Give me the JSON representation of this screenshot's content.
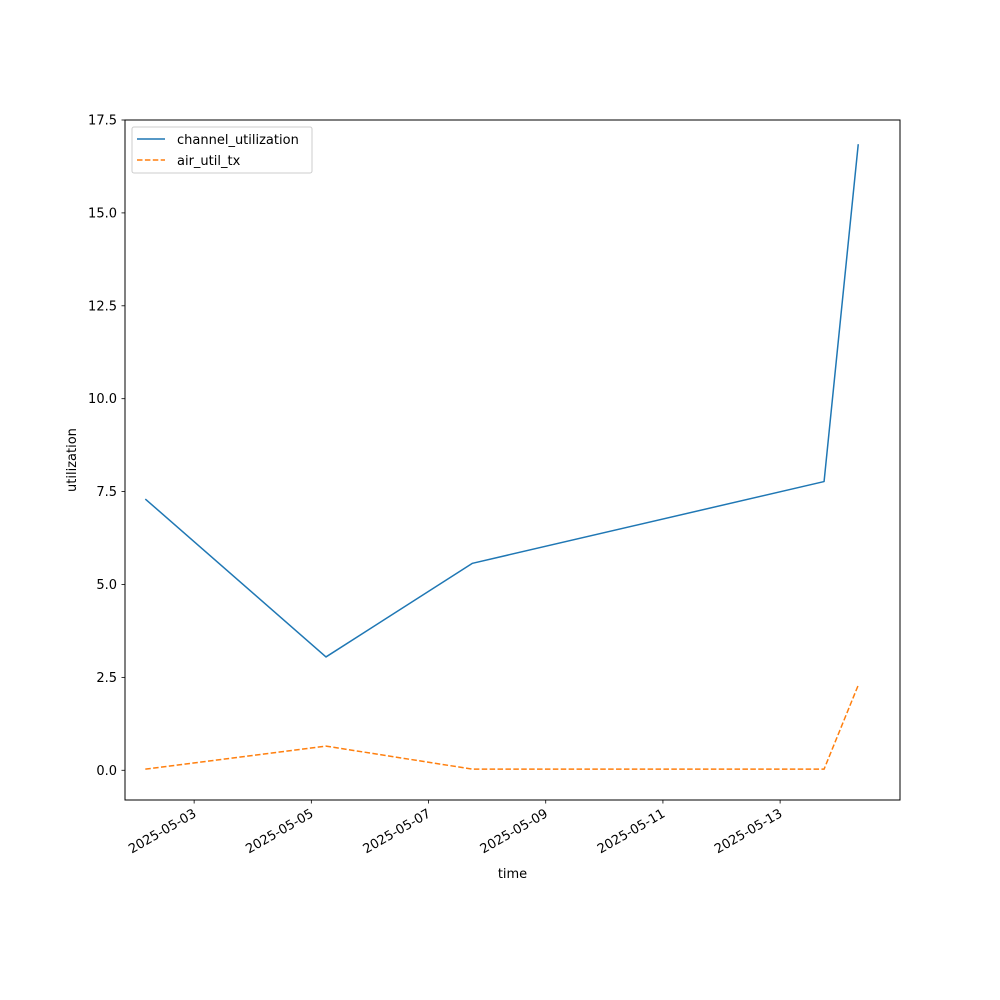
{
  "chart_data": {
    "type": "line",
    "title": "",
    "xlabel": "time",
    "ylabel": "utilization",
    "x_scale": "date",
    "xlim": [
      "2025-05-01T19:41",
      "2025-05-15T01:06"
    ],
    "ylim": [
      -0.8,
      17.5
    ],
    "x_ticks": [
      "2025-05-03",
      "2025-05-05",
      "2025-05-07",
      "2025-05-09",
      "2025-05-11",
      "2025-05-13"
    ],
    "y_ticks": [
      0.0,
      2.5,
      5.0,
      7.5,
      10.0,
      12.5,
      15.0,
      17.5
    ],
    "y_tick_labels": [
      "0.0",
      "2.5",
      "5.0",
      "7.5",
      "10.0",
      "12.5",
      "15.0",
      "17.5"
    ],
    "x_tick_rotation_deg": 30,
    "grid": false,
    "legend_position": "top-left",
    "x": [
      "2025-05-02T04:00",
      "2025-05-05T06:00",
      "2025-05-07T18:00",
      "2025-05-13T18:00",
      "2025-05-14T08:00"
    ],
    "series": [
      {
        "name": "channel_utilization",
        "values": [
          7.3,
          3.05,
          5.57,
          7.77,
          16.85
        ],
        "color": "#1f77b4",
        "line_style": "solid"
      },
      {
        "name": "air_util_tx",
        "values": [
          0.03,
          0.65,
          0.03,
          0.03,
          2.29
        ],
        "color": "#ff7f0e",
        "line_style": "dashed"
      }
    ]
  }
}
